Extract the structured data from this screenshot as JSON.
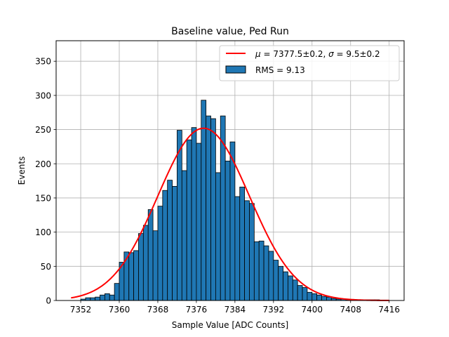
{
  "chart_data": {
    "type": "bar",
    "title": "Baseline value, Ped Run",
    "xlabel": "Sample Value [ADC Counts]",
    "ylabel": "Events",
    "xlim": [
      7346.9,
      7419.1
    ],
    "ylim": [
      0,
      380
    ],
    "xticks": [
      7352,
      7360,
      7368,
      7376,
      7384,
      7392,
      7400,
      7408,
      7416
    ],
    "yticks": [
      0,
      50,
      100,
      150,
      200,
      250,
      300,
      350
    ],
    "grid": true,
    "legend_position": "top-right",
    "histogram": {
      "name": "RMS = 9.13",
      "color": "#1f77b4",
      "edge_color": "#000000",
      "bin_start": 7348,
      "bin_width": 1,
      "counts": [
        0,
        0,
        0,
        0,
        2,
        4,
        4,
        5,
        8,
        10,
        8,
        25,
        56,
        71,
        70,
        73,
        98,
        110,
        133,
        102,
        138,
        161,
        176,
        167,
        249,
        190,
        235,
        253,
        230,
        293,
        270,
        266,
        187,
        270,
        204,
        232,
        152,
        166,
        146,
        142,
        86,
        87,
        80,
        72,
        59,
        50,
        42,
        36,
        30,
        22,
        19,
        12,
        10,
        8,
        6,
        5,
        3,
        2,
        2,
        1,
        1,
        1,
        1,
        1,
        1,
        1,
        0,
        0
      ]
    },
    "fit": {
      "name": "$\\mu = 7377.5$±0.2, $\\sigma = 9.5$±0.2",
      "label_parts": {
        "mu_symbol": "μ",
        "mu_value": " = 7377.5±0.2, ",
        "sigma_symbol": "σ",
        "sigma_value": " = 9.5±0.2"
      },
      "color": "#ff0000",
      "mu": 7377.5,
      "sigma": 9.5,
      "amplitude": 252,
      "x_range": [
        7350,
        7416
      ]
    }
  }
}
